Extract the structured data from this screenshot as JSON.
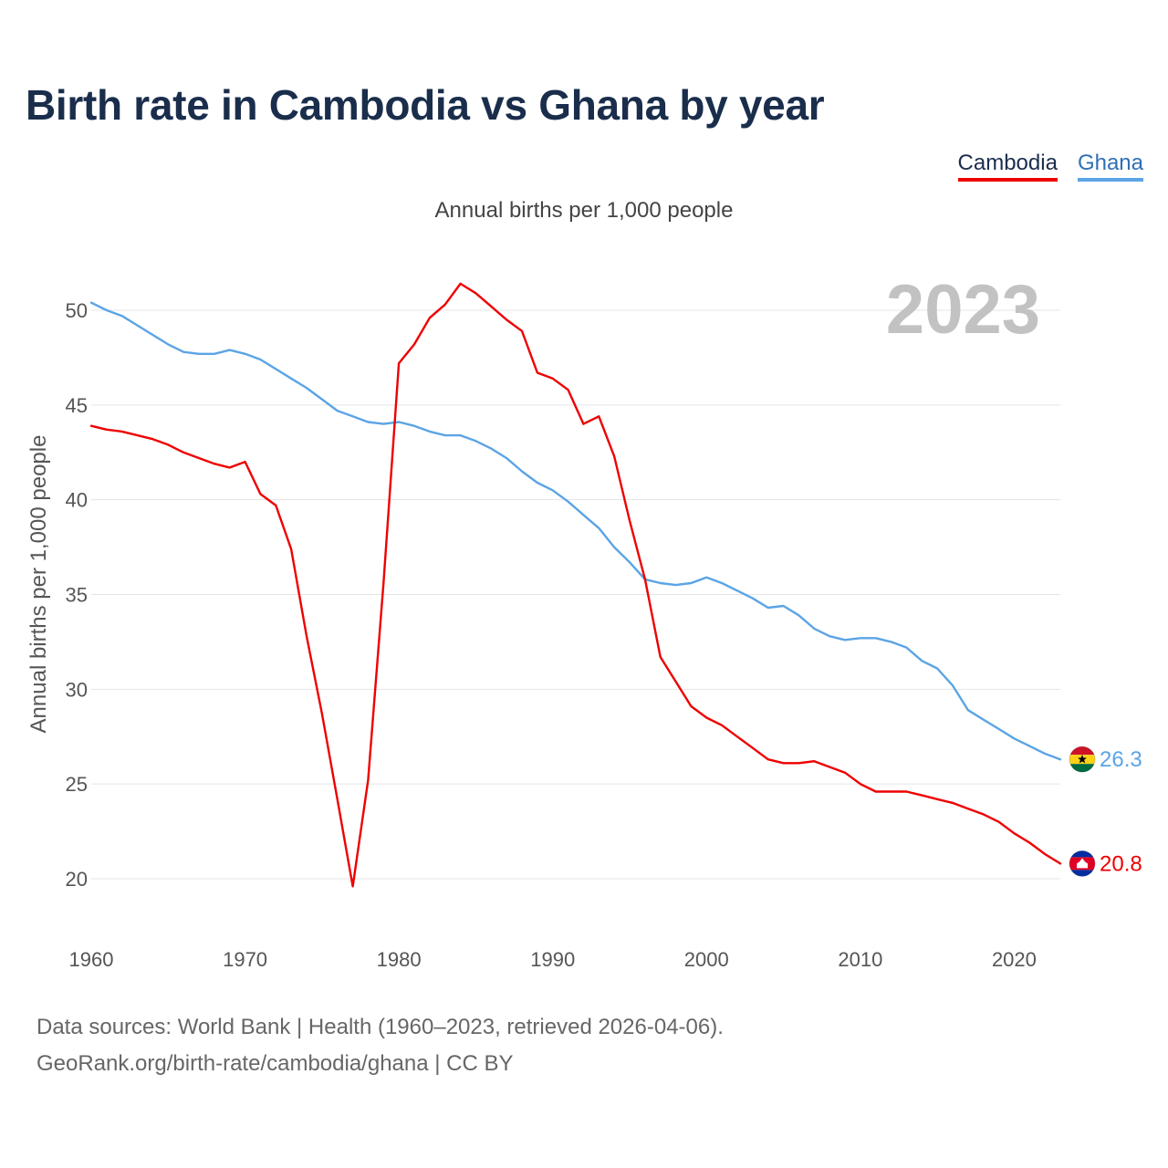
{
  "title": "Birth rate in Cambodia vs Ghana by year",
  "legend": [
    {
      "name": "Cambodia",
      "color": "#ee0000"
    },
    {
      "name": "Ghana",
      "color": "#5ba4e5"
    }
  ],
  "subtitle": "Annual births per 1,000 people",
  "current_year": "2023",
  "footer": {
    "line1": "Data sources: World Bank | Health (1960–2023, retrieved 2026-04-06).",
    "line2": "GeoRank.org/birth-rate/cambodia/ghana | CC BY"
  },
  "chart_data": {
    "type": "line",
    "title": "Birth rate in Cambodia vs Ghana by year",
    "xlabel": "",
    "ylabel": "Annual births per 1,000 people",
    "xlim": [
      1960,
      2023
    ],
    "ylim": [
      17,
      53
    ],
    "x_ticks": [
      1960,
      1970,
      1980,
      1990,
      2000,
      2010,
      2020
    ],
    "y_ticks": [
      20,
      25,
      30,
      35,
      40,
      45,
      50
    ],
    "grid": true,
    "x": [
      1960,
      1961,
      1962,
      1963,
      1964,
      1965,
      1966,
      1967,
      1968,
      1969,
      1970,
      1971,
      1972,
      1973,
      1974,
      1975,
      1976,
      1977,
      1978,
      1979,
      1980,
      1981,
      1982,
      1983,
      1984,
      1985,
      1986,
      1987,
      1988,
      1989,
      1990,
      1991,
      1992,
      1993,
      1994,
      1995,
      1996,
      1997,
      1998,
      1999,
      2000,
      2001,
      2002,
      2003,
      2004,
      2005,
      2006,
      2007,
      2008,
      2009,
      2010,
      2011,
      2012,
      2013,
      2014,
      2015,
      2016,
      2017,
      2018,
      2019,
      2020,
      2021,
      2022,
      2023
    ],
    "series": [
      {
        "name": "Cambodia",
        "color": "#ee0000",
        "end_label": "20.8",
        "values": [
          43.9,
          43.7,
          43.6,
          43.4,
          43.2,
          42.9,
          42.5,
          42.2,
          41.9,
          41.7,
          42.0,
          40.3,
          39.7,
          37.4,
          32.8,
          28.7,
          24.2,
          19.6,
          25.2,
          35.6,
          47.2,
          48.2,
          49.6,
          50.3,
          51.4,
          50.9,
          50.2,
          49.5,
          48.9,
          46.7,
          46.4,
          45.8,
          44.0,
          44.4,
          42.3,
          38.9,
          35.8,
          31.7,
          30.4,
          29.1,
          28.5,
          28.1,
          27.5,
          26.9,
          26.3,
          26.1,
          26.1,
          26.2,
          25.9,
          25.6,
          25.0,
          24.6,
          24.6,
          24.6,
          24.4,
          24.2,
          24.0,
          23.7,
          23.4,
          23.0,
          22.4,
          21.9,
          21.3,
          20.8
        ]
      },
      {
        "name": "Ghana",
        "color": "#5ba4e5",
        "end_label": "26.3",
        "values": [
          50.4,
          50.0,
          49.7,
          49.2,
          48.7,
          48.2,
          47.8,
          47.7,
          47.7,
          47.9,
          47.7,
          47.4,
          46.9,
          46.4,
          45.9,
          45.3,
          44.7,
          44.4,
          44.1,
          44.0,
          44.1,
          43.9,
          43.6,
          43.4,
          43.4,
          43.1,
          42.7,
          42.2,
          41.5,
          40.9,
          40.5,
          39.9,
          39.2,
          38.5,
          37.5,
          36.7,
          35.8,
          35.6,
          35.5,
          35.6,
          35.9,
          35.6,
          35.2,
          34.8,
          34.3,
          34.4,
          33.9,
          33.2,
          32.8,
          32.6,
          32.7,
          32.7,
          32.5,
          32.2,
          31.5,
          31.1,
          30.2,
          28.9,
          28.4,
          27.9,
          27.4,
          27.0,
          26.6,
          26.3
        ]
      }
    ]
  }
}
